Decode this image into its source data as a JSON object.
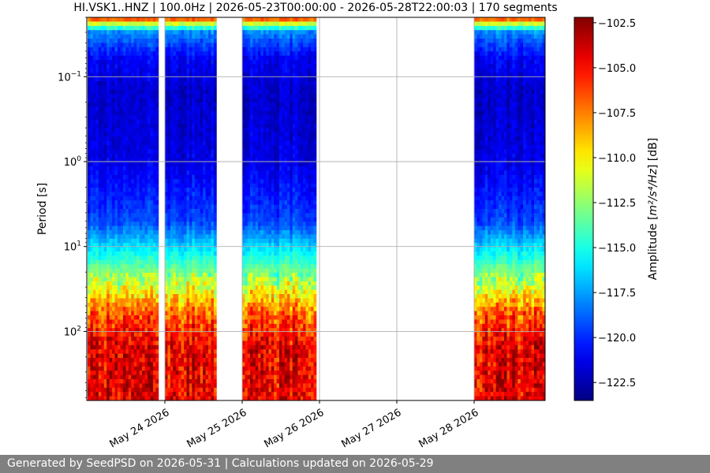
{
  "chart_data": {
    "type": "heatmap",
    "title": "HI.VSK1..HNZ | 100.0Hz | 2026-05-23T00:00:00 - 2026-05-28T22:00:03 | 170 segments",
    "xlabel": "",
    "ylabel": "Period [s]",
    "x_tick_labels": [
      "May 24 2026",
      "May 25 2026",
      "May 26 2026",
      "May 27 2026",
      "May 28 2026"
    ],
    "y_scale": "log",
    "y_inverted": true,
    "y_tick_labels": [
      {
        "base": "10",
        "exp": "−1"
      },
      {
        "base": "10",
        "exp": "0"
      },
      {
        "base": "10",
        "exp": "1"
      },
      {
        "base": "10",
        "exp": "2"
      }
    ],
    "ylim": [
      0.02,
      650
    ],
    "grid": true,
    "colormap": "jet",
    "colorbar": {
      "label_prefix": "Amplitude [",
      "label_math": "m²/s⁴/Hz",
      "label_suffix": "] [dB]",
      "range": [
        -123.5,
        -102.2
      ],
      "ticks": [
        "−102.5",
        "−105.0",
        "−107.5",
        "−110.0",
        "−112.5",
        "−115.0",
        "−117.5",
        "−120.0",
        "−122.5"
      ]
    },
    "data_segments": [
      {
        "start": "2026-05-23T00:00",
        "end": "2026-05-23T22:00"
      },
      {
        "start": "2026-05-24T00:00",
        "end": "2026-05-24T16:00"
      },
      {
        "start": "2026-05-25T00:00",
        "end": "2026-05-25T23:00"
      },
      {
        "start": "2026-05-28T00:00",
        "end": "2026-05-28T22:00"
      }
    ],
    "amplitude_by_period": [
      {
        "period": 0.02,
        "db": -105
      },
      {
        "period": 0.025,
        "db": -113
      },
      {
        "period": 0.03,
        "db": -118
      },
      {
        "period": 0.06,
        "db": -121
      },
      {
        "period": 0.15,
        "db": -122
      },
      {
        "period": 1,
        "db": -121.5
      },
      {
        "period": 5,
        "db": -119.5
      },
      {
        "period": 12,
        "db": -115.5
      },
      {
        "period": 30,
        "db": -111
      },
      {
        "period": 60,
        "db": -107
      },
      {
        "period": 150,
        "db": -104.5
      },
      {
        "period": 400,
        "db": -104.5
      }
    ]
  },
  "footer": {
    "text": "Generated by SeedPSD on 2026-05-31 | Calculations updated on 2026-05-29"
  }
}
